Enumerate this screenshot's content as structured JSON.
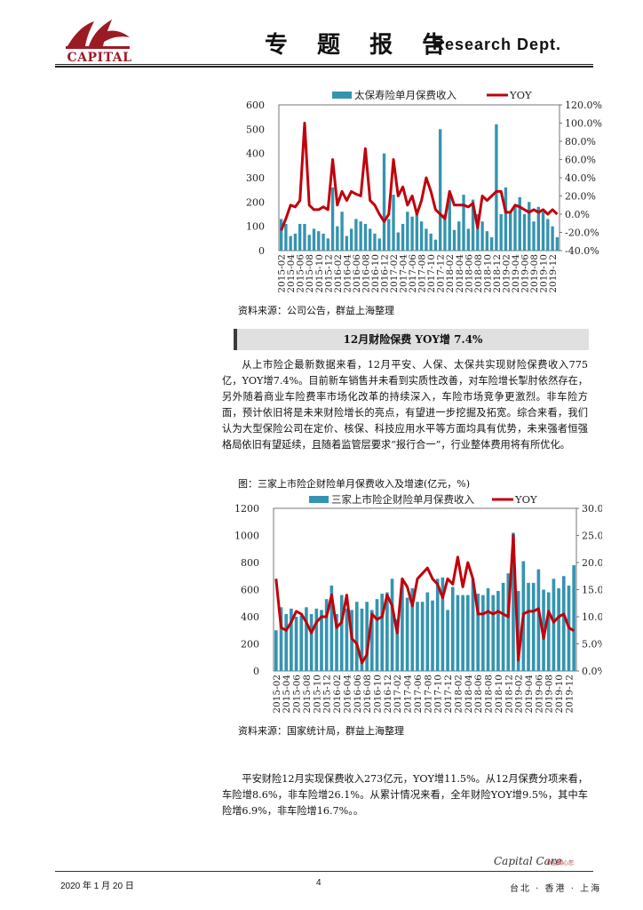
{
  "header": {
    "logo_text": "CAPITAL",
    "title": "专 题 报 告",
    "dept": "Research Dept."
  },
  "chart1": {
    "source": "资料来源：公司公告，群益上海整理"
  },
  "section_title": "12月财险保费 YOY增 7.4%",
  "paragraph1": "从上市险企最新数据来看，12月平安、人保、太保共实现财险保费收入775亿，YOY增7.4%。目前新车销售并未看到实质性改善，对车险增长掣肘依然存在，另外随着商业车险费率市场化改革的持续深入，车险市场竞争更激烈。非车险方面，预计依旧将是未来财险增长的亮点，有望进一步挖掘及拓宽。综合来看，我们认为大型保险公司在定价、核保、科技应用水平等方面均具有优势，未来强者恒强格局依旧有望延续，且随着监管层要求“报行合一”，行业整体费用将有所优化。",
  "chart2": {
    "caption": "图：三家上市险企财险单月保费收入及增速(亿元，%)",
    "source": "资料来源：国家统计局，群益上海整理"
  },
  "paragraph2": "平安财险12月实现保费收入273亿元，YOY增11.5%。从12月保费分项来看，车险增8.6%，非车险增26.1%。从累计情况来看，全年财险YOY增9.5%，其中车险增6.9%，非车险增16.7%。。",
  "footer": {
    "date": "2020 年 1 月 20 日",
    "page": "4",
    "brand": "Capital Care",
    "brand_cn": "群益關心您",
    "cities": "台北 · 香港 · 上海"
  },
  "colors": {
    "bar": "#3494b0",
    "line": "#c0000b",
    "logo": "#9b1b25"
  },
  "chart_data": [
    {
      "type": "bar",
      "legend": [
        "太保寿险单月保费收入",
        "YOY"
      ],
      "x_tick_labels": [
        "2015-02",
        "2015-04",
        "2015-06",
        "2015-08",
        "2015-10",
        "2015-12",
        "2016-02",
        "2016-04",
        "2016-06",
        "2016-08",
        "2016-10",
        "2016-12",
        "2017-02",
        "2017-04",
        "2017-06",
        "2017-08",
        "2017-10",
        "2017-12",
        "2018-02",
        "2018-04",
        "2018-06",
        "2018-08",
        "2018-10",
        "2018-12",
        "2019-02",
        "2019-04",
        "2019-06",
        "2019-08",
        "2019-10",
        "2019-12"
      ],
      "left_axis": {
        "min": 0,
        "max": 600,
        "ticks": [
          "0",
          "100",
          "200",
          "300",
          "400",
          "500",
          "600"
        ]
      },
      "right_axis": {
        "min": -40,
        "max": 120,
        "ticks": [
          "-40.0%",
          "-20.0%",
          "0.0%",
          "20.0%",
          "40.0%",
          "60.0%",
          "80.0%",
          "100.0%",
          "120.0%"
        ]
      },
      "bar_values": [
        130,
        110,
        60,
        70,
        110,
        110,
        65,
        90,
        80,
        70,
        50,
        260,
        100,
        160,
        60,
        90,
        130,
        120,
        110,
        90,
        70,
        50,
        400,
        130,
        230,
        75,
        110,
        160,
        140,
        160,
        120,
        90,
        70,
        45,
        500,
        150,
        230,
        85,
        120,
        230,
        90,
        210,
        150,
        120,
        80,
        55,
        520,
        150,
        260,
        160,
        180,
        220,
        150,
        200,
        120,
        180,
        160,
        130,
        100,
        55
      ],
      "line_values": [
        -18,
        -5,
        10,
        8,
        15,
        100,
        10,
        5,
        5,
        8,
        5,
        60,
        10,
        25,
        15,
        25,
        22,
        20,
        72,
        15,
        10,
        0,
        -8,
        0,
        60,
        20,
        30,
        10,
        20,
        0,
        15,
        40,
        25,
        5,
        0,
        -5,
        25,
        10,
        10,
        10,
        8,
        12,
        -15,
        20,
        15,
        20,
        25,
        25,
        2,
        2,
        10,
        8,
        5,
        2,
        5,
        2,
        5,
        0,
        5,
        0
      ],
      "ylim_left": [
        0,
        600
      ],
      "ylim_right": [
        -40,
        120
      ]
    },
    {
      "type": "bar",
      "legend": [
        "三家上市险企财险单月保费收入",
        "YOY"
      ],
      "x_tick_labels": [
        "2015-02",
        "2015-04",
        "2015-06",
        "2015-08",
        "2015-10",
        "2015-12",
        "2016-02",
        "2016-04",
        "2016-06",
        "2016-08",
        "2016-10",
        "2016-12",
        "2017-02",
        "2017-04",
        "2017-06",
        "2017-08",
        "2017-10",
        "2017-12",
        "2018-02",
        "2018-04",
        "2018-06",
        "2018-08",
        "2018-10",
        "2018-12",
        "2019-02",
        "2019-04",
        "2019-06",
        "2019-08",
        "2019-10",
        "2019-12"
      ],
      "left_axis": {
        "min": 0,
        "max": 1200,
        "ticks": [
          "0",
          "200",
          "400",
          "600",
          "800",
          "1000",
          "1200"
        ]
      },
      "right_axis": {
        "min": 0,
        "max": 30,
        "ticks": [
          "0.0%",
          "5.0%",
          "10.0%",
          "15.0%",
          "20.0%",
          "25.0%",
          "30.0%"
        ]
      },
      "bar_values": [
        300,
        470,
        420,
        460,
        400,
        410,
        470,
        420,
        460,
        450,
        530,
        630,
        420,
        560,
        460,
        450,
        510,
        460,
        510,
        450,
        530,
        570,
        580,
        680,
        380,
        650,
        540,
        610,
        510,
        510,
        580,
        520,
        680,
        690,
        450,
        620,
        560,
        560,
        560,
        680,
        570,
        560,
        610,
        560,
        590,
        650,
        720,
        1020,
        590,
        810,
        650,
        650,
        750,
        600,
        580,
        680,
        610,
        700,
        630,
        780
      ],
      "line_values": [
        17,
        8,
        7.5,
        9,
        11,
        10.5,
        9,
        7,
        9,
        10,
        10,
        14,
        8,
        9,
        14,
        6,
        5,
        1.5,
        3,
        10.5,
        9.5,
        10,
        14,
        12,
        7,
        17,
        15.5,
        12,
        17,
        18,
        19,
        17,
        16,
        13.5,
        17,
        16,
        21,
        15.5,
        20,
        17,
        10.5,
        10.5,
        11,
        10.5,
        11,
        10.5,
        10,
        25,
        2,
        10.5,
        11,
        11,
        11.5,
        6,
        11,
        9,
        10,
        10.5,
        8,
        7.4
      ],
      "ylim_left": [
        0,
        1200
      ],
      "ylim_right": [
        0,
        30
      ]
    }
  ]
}
